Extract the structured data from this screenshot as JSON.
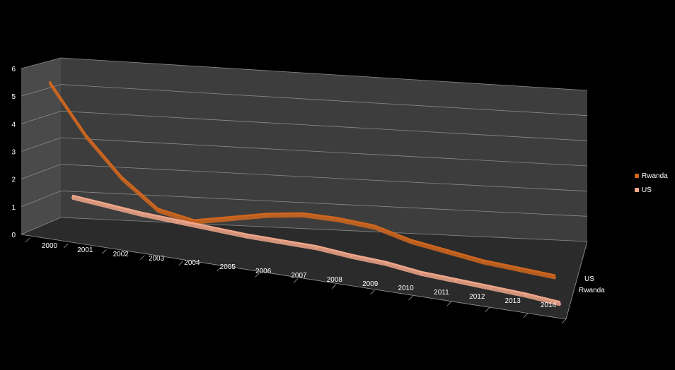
{
  "chart_data": {
    "type": "line",
    "title": "",
    "xlabel": "",
    "ylabel": "",
    "ylim": [
      0,
      6
    ],
    "y_ticks": [
      "0",
      "1",
      "2",
      "3",
      "4",
      "5",
      "6"
    ],
    "categories": [
      "2000",
      "2001",
      "2002",
      "2003",
      "2004",
      "2005",
      "2006",
      "2007",
      "2008",
      "2009",
      "2010",
      "2011",
      "2012",
      "2013",
      "2014"
    ],
    "depth_categories": [
      "US",
      "Rwanda"
    ],
    "series": [
      {
        "name": "Rwanda",
        "color": "#d0661e",
        "values": [
          5.6,
          3.8,
          2.4,
          1.4,
          1.15,
          1.45,
          1.75,
          1.95,
          1.95,
          1.85,
          1.5,
          1.3,
          1.1,
          1.0,
          0.9
        ]
      },
      {
        "name": "US",
        "color": "#f0a68a",
        "values": [
          1.4,
          1.25,
          1.1,
          1.0,
          0.9,
          0.8,
          0.75,
          0.7,
          0.55,
          0.45,
          0.25,
          0.15,
          0.05,
          -0.05,
          -0.2
        ]
      }
    ],
    "grid": true,
    "legend_position": "right",
    "background_color": "#000000",
    "wall_color": "#3d3d3d",
    "floor_color": "#2b2b2b"
  }
}
